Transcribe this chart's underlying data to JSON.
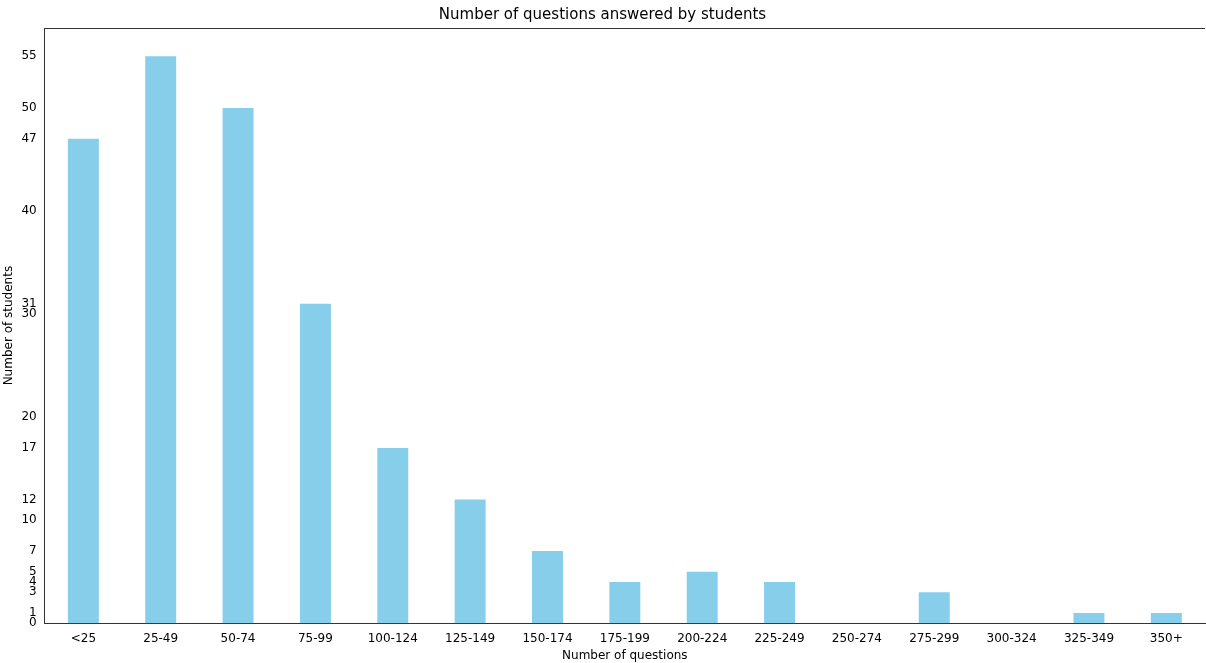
{
  "chart_data": {
    "type": "bar",
    "title": "Number of questions answered by students",
    "xlabel": "Number of questions",
    "ylabel": "Number of students",
    "categories": [
      "<25",
      "25-49",
      "50-74",
      "75-99",
      "100-124",
      "125-149",
      "150-174",
      "175-199",
      "200-224",
      "225-249",
      "250-274",
      "275-299",
      "300-324",
      "325-349",
      "350+"
    ],
    "values": [
      47,
      55,
      50,
      31,
      17,
      12,
      7,
      4,
      5,
      4,
      0,
      3,
      0,
      1,
      1
    ],
    "color": "#87ceeb",
    "ylim": [
      0,
      57.75
    ],
    "yticks": [
      0,
      1,
      3,
      4,
      5,
      7,
      10,
      12,
      17,
      20,
      30,
      31,
      40,
      47,
      50,
      55
    ],
    "grid": false,
    "legend": false
  }
}
